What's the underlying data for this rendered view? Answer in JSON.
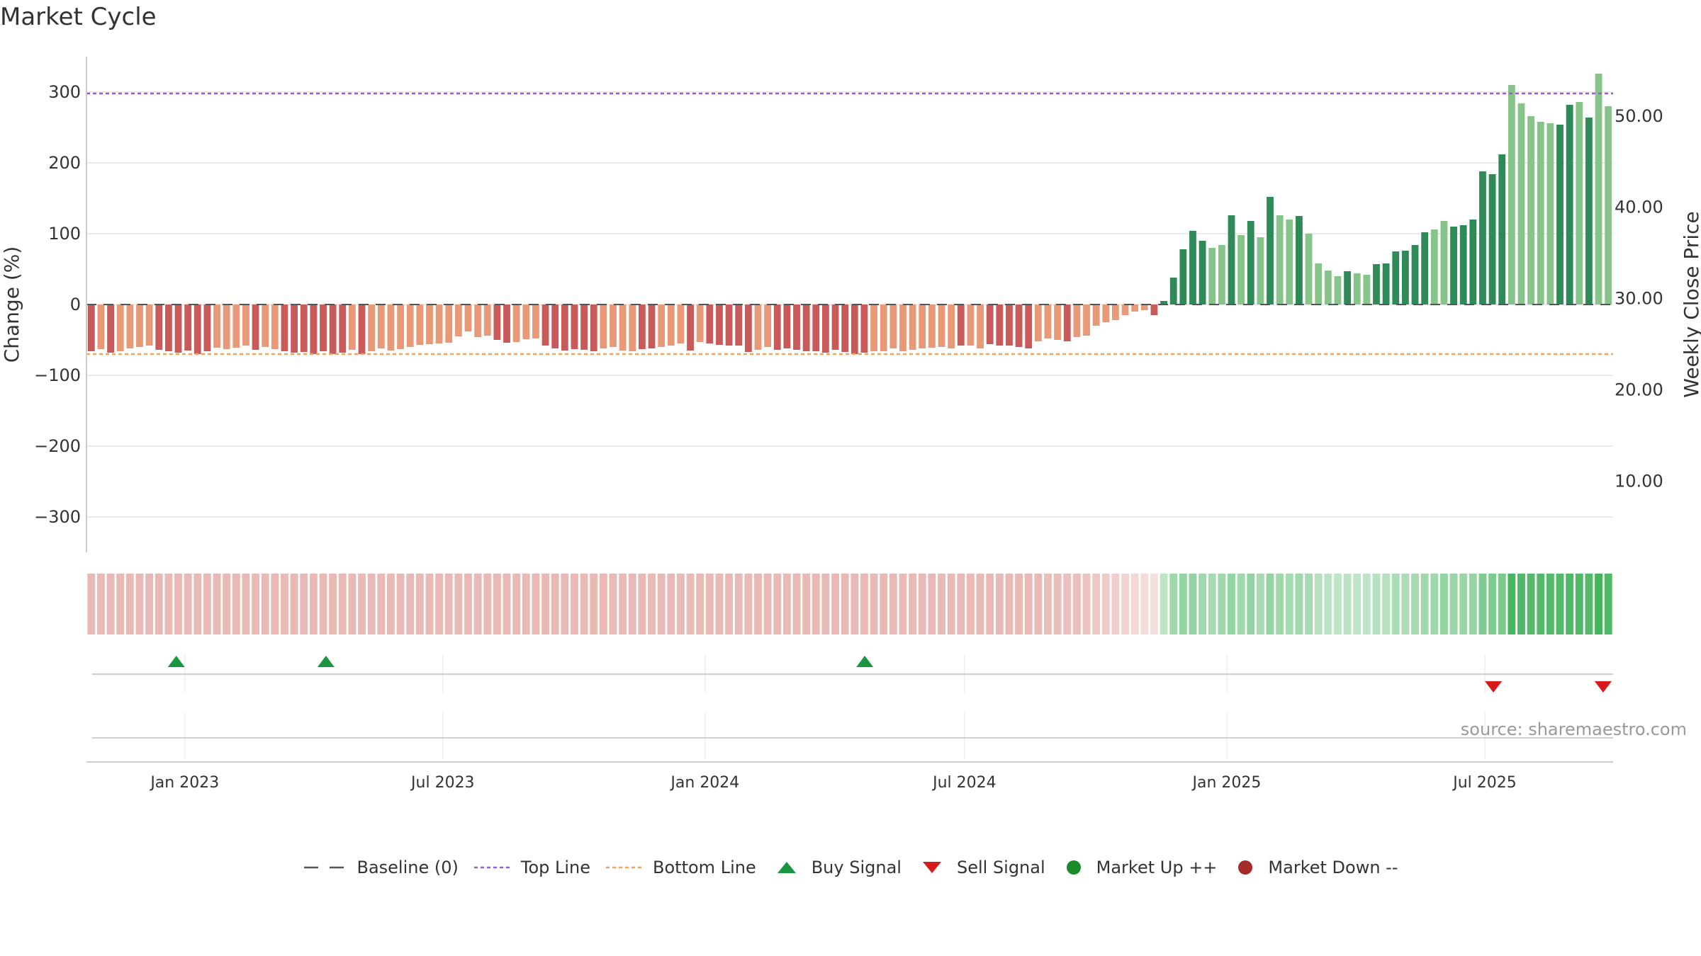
{
  "title": "Market Cycle",
  "source": "source: sharemaestro.com",
  "colors": {
    "neg_dark": "#c95a5a",
    "neg_light": "#e89a78",
    "pos_dark": "#2e8b57",
    "pos_light": "#86c489",
    "top_line": "#9b59d6",
    "bottom_line": "#f0a35e",
    "baseline": "#555555",
    "buy": "#1a9641",
    "sell": "#d7191c",
    "market_up": "#1a8a2a",
    "market_down": "#a52a2a"
  },
  "chart_data": {
    "type": "bar",
    "ylabel": "Change (%)",
    "y2label": "Weekly Close Price",
    "ylim": [
      -350,
      350
    ],
    "y_ticks": [
      "300",
      "200",
      "100",
      "0",
      "−100",
      "−200",
      "−300"
    ],
    "y_tick_values": [
      300,
      200,
      100,
      0,
      -100,
      -200,
      -300
    ],
    "y2_ticks": [
      "50.00",
      "40.00",
      "30.00",
      "20.00",
      "10.00"
    ],
    "y2_tick_values": [
      50,
      40,
      30,
      20,
      10
    ],
    "y2lim": [
      2.2,
      56.5
    ],
    "top_line": 298,
    "bottom_line": -70,
    "x_start": "2022-10-24",
    "x_end": "2025-09-29",
    "x_ticks": [
      {
        "label": "Jan 2023",
        "date": "2023-01-01"
      },
      {
        "label": "Jul 2023",
        "date": "2023-07-01"
      },
      {
        "label": "Jan 2024",
        "date": "2024-01-01"
      },
      {
        "label": "Jul 2024",
        "date": "2024-07-01"
      },
      {
        "label": "Jan 2025",
        "date": "2025-01-01"
      },
      {
        "label": "Jul 2025",
        "date": "2025-07-01"
      }
    ],
    "values": [
      -66,
      -63,
      -68,
      -66,
      -62,
      -60,
      -58,
      -64,
      -66,
      -68,
      -65,
      -70,
      -66,
      -61,
      -63,
      -61,
      -58,
      -64,
      -60,
      -63,
      -66,
      -68,
      -67,
      -70,
      -66,
      -70,
      -68,
      -64,
      -70,
      -66,
      -62,
      -65,
      -63,
      -60,
      -57,
      -56,
      -55,
      -54,
      -45,
      -38,
      -46,
      -44,
      -50,
      -54,
      -53,
      -49,
      -48,
      -58,
      -62,
      -65,
      -63,
      -64,
      -66,
      -62,
      -60,
      -65,
      -66,
      -63,
      -62,
      -60,
      -58,
      -55,
      -65,
      -53,
      -55,
      -57,
      -58,
      -58,
      -67,
      -64,
      -60,
      -64,
      -62,
      -64,
      -66,
      -66,
      -68,
      -64,
      -67,
      -70,
      -68,
      -66,
      -66,
      -62,
      -66,
      -64,
      -62,
      -61,
      -60,
      -62,
      -58,
      -58,
      -62,
      -56,
      -58,
      -58,
      -60,
      -62,
      -52,
      -48,
      -50,
      -52,
      -46,
      -44,
      -30,
      -25,
      -22,
      -15,
      -10,
      -8,
      -15,
      5,
      38,
      78,
      104,
      90,
      80,
      84,
      126,
      98,
      118,
      95,
      152,
      126,
      120,
      125,
      100,
      58,
      48,
      40,
      47,
      44,
      42,
      57,
      58,
      75,
      76,
      84,
      102,
      106,
      118,
      110,
      112,
      120,
      188,
      184,
      212,
      310,
      284,
      266,
      258,
      256,
      254,
      282,
      286,
      264,
      326,
      280
    ],
    "shades": [
      "d",
      "l",
      "d",
      "l",
      "l",
      "l",
      "l",
      "d",
      "d",
      "d",
      "d",
      "d",
      "d",
      "l",
      "l",
      "l",
      "l",
      "d",
      "l",
      "l",
      "d",
      "d",
      "d",
      "d",
      "d",
      "d",
      "d",
      "l",
      "d",
      "l",
      "l",
      "l",
      "l",
      "l",
      "l",
      "l",
      "l",
      "l",
      "l",
      "l",
      "l",
      "l",
      "d",
      "d",
      "l",
      "l",
      "l",
      "d",
      "d",
      "d",
      "d",
      "d",
      "d",
      "l",
      "l",
      "l",
      "l",
      "d",
      "d",
      "l",
      "l",
      "l",
      "d",
      "l",
      "d",
      "d",
      "d",
      "d",
      "d",
      "l",
      "l",
      "d",
      "d",
      "d",
      "d",
      "d",
      "d",
      "d",
      "d",
      "d",
      "d",
      "l",
      "l",
      "l",
      "l",
      "l",
      "l",
      "l",
      "l",
      "l",
      "d",
      "l",
      "l",
      "d",
      "d",
      "d",
      "d",
      "d",
      "l",
      "l",
      "l",
      "d",
      "l",
      "l",
      "l",
      "l",
      "l",
      "l",
      "l",
      "l",
      "d",
      "d",
      "d",
      "d",
      "d",
      "d",
      "l",
      "l",
      "d",
      "l",
      "d",
      "l",
      "d",
      "l",
      "l",
      "d",
      "l",
      "l",
      "l",
      "l",
      "d",
      "l",
      "l",
      "d",
      "d",
      "d",
      "d",
      "d",
      "d",
      "l",
      "l",
      "d",
      "d",
      "d",
      "d",
      "d",
      "d",
      "l",
      "l",
      "l",
      "l",
      "l",
      "d",
      "d",
      "l",
      "d",
      "l"
    ],
    "heat_alpha": [
      0.35,
      0.35,
      0.35,
      0.35,
      0.35,
      0.35,
      0.35,
      0.35,
      0.35,
      0.35,
      0.35,
      0.35,
      0.35,
      0.35,
      0.35,
      0.35,
      0.35,
      0.35,
      0.35,
      0.35,
      0.35,
      0.35,
      0.35,
      0.35,
      0.35,
      0.35,
      0.35,
      0.35,
      0.35,
      0.35,
      0.35,
      0.35,
      0.35,
      0.35,
      0.35,
      0.35,
      0.35,
      0.35,
      0.35,
      0.35,
      0.35,
      0.35,
      0.35,
      0.35,
      0.35,
      0.35,
      0.35,
      0.35,
      0.35,
      0.35,
      0.35,
      0.35,
      0.35,
      0.35,
      0.35,
      0.35,
      0.35,
      0.35,
      0.35,
      0.35,
      0.35,
      0.35,
      0.35,
      0.35,
      0.35,
      0.35,
      0.35,
      0.35,
      0.35,
      0.35,
      0.35,
      0.35,
      0.35,
      0.35,
      0.35,
      0.35,
      0.35,
      0.35,
      0.35,
      0.35,
      0.35,
      0.35,
      0.35,
      0.35,
      0.35,
      0.35,
      0.35,
      0.35,
      0.35,
      0.35,
      0.35,
      0.35,
      0.35,
      0.35,
      0.35,
      0.35,
      0.35,
      0.35,
      0.35,
      0.33,
      0.33,
      0.32,
      0.32,
      0.3,
      0.28,
      0.26,
      0.24,
      0.22,
      0.2,
      0.18,
      0.16,
      0.3,
      0.45,
      0.5,
      0.5,
      0.45,
      0.42,
      0.45,
      0.5,
      0.45,
      0.5,
      0.42,
      0.5,
      0.45,
      0.42,
      0.45,
      0.42,
      0.35,
      0.32,
      0.3,
      0.32,
      0.3,
      0.3,
      0.35,
      0.35,
      0.4,
      0.4,
      0.42,
      0.45,
      0.45,
      0.5,
      0.48,
      0.48,
      0.5,
      0.6,
      0.6,
      0.62,
      0.85,
      0.82,
      0.8,
      0.8,
      0.8,
      0.8,
      0.82,
      0.82,
      0.8,
      0.88,
      0.82
    ],
    "buy_signals": [
      "2022-12-26",
      "2023-04-10",
      "2024-04-22"
    ],
    "sell_signals": [
      "2025-07-07",
      "2025-09-22"
    ],
    "annotations": [
      "Market Up ++",
      "Market Down --"
    ]
  },
  "legend": [
    {
      "name": "baseline",
      "label": "Baseline (0)"
    },
    {
      "name": "top-line",
      "label": "Top Line"
    },
    {
      "name": "bottom-line",
      "label": "Bottom Line"
    },
    {
      "name": "buy-signal",
      "label": "Buy Signal"
    },
    {
      "name": "sell-signal",
      "label": "Sell Signal"
    },
    {
      "name": "market-up",
      "label": "Market Up ++"
    },
    {
      "name": "market-down",
      "label": "Market Down --"
    }
  ]
}
